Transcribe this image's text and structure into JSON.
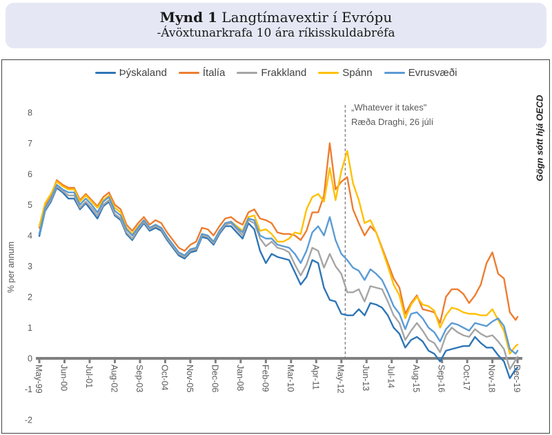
{
  "header": {
    "title_prefix": "Mynd 1",
    "title_rest": " Langtímavextir í Evrópu",
    "subtitle": "-Ávöxtunarkrafa 10 ára ríkisskuldabréfa"
  },
  "annotation": {
    "line1": "„Whatever it takes\"",
    "line2": "Ræða Draghi, 26 júlí"
  },
  "source_note": "Gögn sótt hjá OECD",
  "colors": {
    "banner_bg": "#E5E8F4",
    "box_border": "#404040",
    "axis": "#808080",
    "tick_text": "#595959",
    "event_line": "#7F7F7F"
  },
  "chart_data": {
    "type": "line",
    "title": "Mynd 1 Langtímavextir í Evrópu",
    "subtitle": "-Ávöxtunarkrafa 10 ára ríkisskuldabréfa",
    "ylabel": "% per annum",
    "ylim": [
      -2,
      8
    ],
    "y_ticks": [
      8,
      7,
      6,
      5,
      4,
      3,
      2,
      1,
      0,
      -1,
      -2
    ],
    "grid": false,
    "legend_position": "top",
    "x_unit": "months since May-1999 (OECD monthly data, sampled quarterly)",
    "x_labels": [
      "May-99",
      "Jun-00",
      "Jul-01",
      "Aug-02",
      "Sep-03",
      "Oct-04",
      "Nov-05",
      "Dec-06",
      "Jan-08",
      "Feb-09",
      "Mar-10",
      "Apr-11",
      "May-12",
      "Jun-13",
      "Jul-14",
      "Aug-15",
      "Sep-16",
      "Oct-17",
      "Nov-18",
      "Dec-19"
    ],
    "x_tick_months": [
      0,
      13,
      26,
      39,
      52,
      65,
      78,
      91,
      104,
      117,
      130,
      143,
      156,
      169,
      182,
      195,
      208,
      221,
      234,
      247
    ],
    "x_months": [
      0,
      3,
      6,
      9,
      12,
      15,
      18,
      21,
      24,
      27,
      30,
      33,
      36,
      39,
      42,
      45,
      48,
      51,
      54,
      57,
      60,
      63,
      66,
      69,
      72,
      75,
      78,
      81,
      84,
      87,
      90,
      93,
      96,
      99,
      102,
      105,
      108,
      111,
      114,
      117,
      120,
      123,
      126,
      129,
      132,
      135,
      138,
      141,
      144,
      147,
      150,
      153,
      156,
      159,
      162,
      165,
      168,
      171,
      174,
      177,
      180,
      183,
      186,
      189,
      192,
      195,
      198,
      201,
      204,
      207,
      210,
      213,
      216,
      219,
      222,
      225,
      228,
      231,
      234,
      237,
      240,
      243,
      246,
      247
    ],
    "annotation_line": {
      "month": 158,
      "date": "26 júlí 2012",
      "label_line1": "„Whatever it takes\"",
      "label_line2": "Ræða Draghi, 26 júlí"
    },
    "series": [
      {
        "name": "Þýskaland",
        "color": "#2E75B6",
        "values": [
          3.98,
          4.8,
          5.1,
          5.55,
          5.4,
          5.2,
          5.2,
          4.85,
          5.05,
          4.8,
          4.55,
          4.95,
          5.1,
          4.65,
          4.5,
          4.05,
          3.85,
          4.15,
          4.4,
          4.15,
          4.25,
          4.15,
          3.85,
          3.6,
          3.35,
          3.25,
          3.45,
          3.5,
          3.95,
          3.9,
          3.7,
          4.05,
          4.3,
          4.3,
          4.1,
          3.9,
          4.4,
          4.2,
          3.5,
          3.1,
          3.4,
          3.3,
          3.25,
          3.2,
          2.8,
          2.4,
          2.65,
          3.2,
          3.1,
          2.3,
          1.9,
          1.85,
          1.45,
          1.4,
          1.4,
          1.6,
          1.4,
          1.8,
          1.75,
          1.65,
          1.4,
          1.0,
          0.8,
          0.35,
          0.6,
          0.7,
          0.55,
          0.25,
          0.15,
          -0.1,
          0.25,
          0.3,
          0.35,
          0.4,
          0.4,
          0.7,
          0.5,
          0.35,
          0.35,
          0.1,
          -0.1,
          -0.65,
          -0.35,
          -0.3
        ]
      },
      {
        "name": "Ítalía",
        "color": "#ED7D31",
        "values": [
          4.25,
          5.0,
          5.3,
          5.8,
          5.65,
          5.55,
          5.55,
          5.15,
          5.35,
          5.15,
          4.95,
          5.25,
          5.4,
          5.0,
          4.85,
          4.35,
          4.15,
          4.4,
          4.6,
          4.35,
          4.5,
          4.4,
          4.1,
          3.85,
          3.6,
          3.5,
          3.7,
          3.8,
          4.25,
          4.2,
          4.0,
          4.3,
          4.55,
          4.6,
          4.45,
          4.35,
          4.75,
          4.85,
          4.55,
          4.5,
          4.4,
          4.1,
          4.05,
          4.05,
          4.0,
          3.85,
          4.15,
          4.75,
          4.75,
          5.3,
          7.0,
          5.5,
          5.75,
          5.9,
          4.85,
          4.4,
          4.0,
          4.3,
          4.1,
          3.6,
          3.1,
          2.6,
          2.3,
          1.45,
          1.8,
          2.05,
          1.6,
          1.55,
          1.5,
          1.15,
          2.0,
          2.25,
          2.25,
          2.1,
          1.8,
          2.05,
          2.4,
          3.1,
          3.45,
          2.75,
          2.6,
          1.5,
          1.25,
          1.35
        ]
      },
      {
        "name": "Frakkland",
        "color": "#A5A5A5",
        "values": [
          4.05,
          4.85,
          5.15,
          5.6,
          5.45,
          5.3,
          5.3,
          4.9,
          5.1,
          4.9,
          4.65,
          5.0,
          5.15,
          4.7,
          4.55,
          4.1,
          3.9,
          4.2,
          4.45,
          4.2,
          4.3,
          4.2,
          3.9,
          3.65,
          3.4,
          3.3,
          3.5,
          3.55,
          4.0,
          3.95,
          3.75,
          4.1,
          4.35,
          4.4,
          4.2,
          4.0,
          4.5,
          4.4,
          3.9,
          3.65,
          3.8,
          3.6,
          3.55,
          3.45,
          3.05,
          2.7,
          3.05,
          3.6,
          3.5,
          2.95,
          3.4,
          3.0,
          2.75,
          2.15,
          2.15,
          2.25,
          1.85,
          2.35,
          2.3,
          2.25,
          1.85,
          1.4,
          1.15,
          0.6,
          0.9,
          1.15,
          0.9,
          0.6,
          0.5,
          0.2,
          0.75,
          1.0,
          0.85,
          0.75,
          0.7,
          0.95,
          0.8,
          0.7,
          0.75,
          0.55,
          0.3,
          -0.35,
          -0.05,
          0.05
        ]
      },
      {
        "name": "Spánn",
        "color": "#FFC000",
        "values": [
          4.3,
          5.05,
          5.35,
          5.75,
          5.6,
          5.5,
          5.5,
          5.1,
          5.3,
          5.1,
          4.9,
          5.15,
          5.3,
          4.9,
          4.75,
          4.25,
          4.05,
          4.3,
          4.5,
          4.25,
          4.35,
          4.25,
          3.95,
          3.7,
          3.45,
          3.35,
          3.55,
          3.6,
          4.05,
          4.0,
          3.8,
          4.15,
          4.4,
          4.45,
          4.3,
          4.15,
          4.6,
          4.65,
          4.15,
          4.2,
          4.05,
          3.8,
          3.8,
          3.9,
          4.1,
          4.05,
          4.85,
          5.25,
          5.35,
          5.1,
          6.2,
          5.15,
          6.1,
          6.75,
          5.7,
          5.15,
          4.4,
          4.5,
          4.1,
          3.55,
          3.0,
          2.4,
          2.05,
          1.3,
          1.75,
          2.0,
          1.75,
          1.7,
          1.55,
          1.0,
          1.4,
          1.65,
          1.6,
          1.5,
          1.45,
          1.45,
          1.4,
          1.4,
          1.6,
          1.25,
          0.9,
          0.15,
          0.4,
          0.45
        ]
      },
      {
        "name": "Evrusvæði",
        "color": "#5B9BD5",
        "values": [
          4.05,
          4.9,
          5.2,
          5.65,
          5.5,
          5.4,
          5.4,
          5.0,
          5.2,
          5.0,
          4.75,
          5.1,
          5.25,
          4.8,
          4.65,
          4.2,
          4.0,
          4.25,
          4.5,
          4.25,
          4.35,
          4.25,
          3.95,
          3.7,
          3.45,
          3.35,
          3.55,
          3.6,
          4.05,
          4.0,
          3.8,
          4.15,
          4.4,
          4.45,
          4.25,
          4.1,
          4.55,
          4.5,
          4.0,
          3.9,
          3.9,
          3.7,
          3.65,
          3.6,
          3.4,
          3.1,
          3.5,
          4.1,
          4.3,
          4.0,
          4.6,
          3.85,
          3.4,
          3.2,
          2.95,
          2.85,
          2.55,
          2.9,
          2.75,
          2.55,
          2.15,
          1.7,
          1.45,
          0.95,
          1.45,
          1.5,
          1.3,
          1.0,
          0.85,
          0.55,
          0.95,
          1.15,
          1.1,
          1.0,
          0.9,
          1.15,
          1.1,
          1.05,
          1.2,
          1.3,
          1.05,
          0.3,
          0.15,
          0.25
        ]
      }
    ]
  }
}
